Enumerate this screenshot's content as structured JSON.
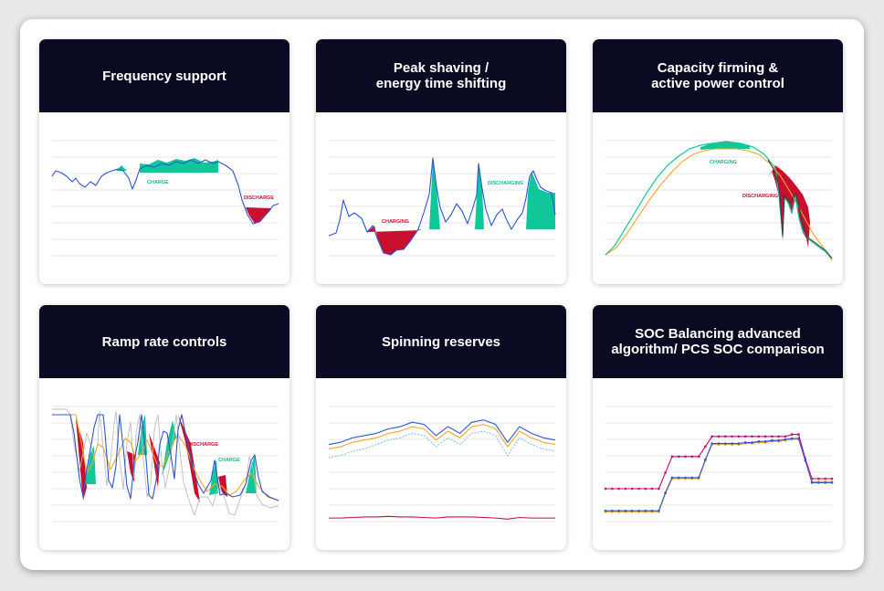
{
  "colors": {
    "header_bg": "#0a0b22",
    "blue": "#2a56d6",
    "green": "#0fc79a",
    "red": "#c8102e",
    "orange": "#f5a623",
    "magenta": "#d1007c",
    "gray": "#b5b5b5",
    "light_blue": "#6fb4ee",
    "grid": "#e3e3e3"
  },
  "cards": [
    {
      "title": "Frequency support",
      "chart_data": {
        "type": "line",
        "annotations": [
          "CHARGE",
          "DISCHARGE"
        ],
        "series": [
          {
            "values": [
              0.62,
              0.66,
              0.64,
              0.58,
              0.6,
              0.55,
              0.57,
              0.52,
              0.58,
              0.56,
              0.62,
              0.64,
              0.7,
              0.66,
              0.5,
              0.6,
              0.7,
              0.74,
              0.72,
              0.76,
              0.74,
              0.78,
              0.76,
              0.8,
              0.75,
              0.78,
              0.74,
              0.72,
              0.6,
              0.48,
              0.38,
              0.3,
              0.26,
              0.32,
              0.36,
              0.4
            ]
          }
        ]
      }
    },
    {
      "title": "Peak shaving /\nenergy time shifting",
      "chart_data": {
        "type": "line",
        "annotations": [
          "CHARGING",
          "DISCHARGING"
        ],
        "series": [
          {
            "values": [
              0.3,
              0.35,
              0.5,
              0.45,
              0.38,
              0.3,
              0.15,
              0.1,
              0.12,
              0.14,
              0.2,
              0.32,
              0.28,
              0.55,
              0.82,
              0.5,
              0.42,
              0.5,
              0.8,
              0.46,
              0.32,
              0.38,
              0.42,
              0.35,
              0.5,
              0.7,
              0.75,
              0.62,
              0.5,
              0.35
            ]
          }
        ]
      }
    },
    {
      "title": "Capacity firming &\nactive power control",
      "chart_data": {
        "type": "line",
        "annotations": [
          "CHARGING",
          "DISCHARGING"
        ],
        "series": [
          {
            "values": [
              0.03,
              0.2,
              0.4,
              0.58,
              0.74,
              0.86,
              0.93,
              0.96,
              0.92,
              0.8,
              0.6,
              0.4,
              0.2,
              0.05
            ]
          }
        ]
      }
    },
    {
      "title": "Ramp rate controls",
      "chart_data": {
        "type": "line",
        "annotations": [
          "DISCHARGE",
          "CHARGE"
        ],
        "series": [
          {
            "values": [
              0.9,
              0.9,
              0.4,
              0.1,
              0.9,
              0.2,
              0.9,
              0.5,
              0.8,
              0.3,
              0.85,
              0.2,
              0.8,
              0.6,
              0.5,
              0.4,
              0.55,
              0.3,
              0.5,
              0.3,
              0.2,
              0.18
            ]
          }
        ]
      }
    },
    {
      "title": "Spinning reserves",
      "chart_data": {
        "type": "line",
        "series": [
          {
            "values": [
              0.7,
              0.72,
              0.76,
              0.78,
              0.8,
              0.84,
              0.86,
              0.9,
              0.88,
              0.78,
              0.86,
              0.8,
              0.9,
              0.92,
              0.88,
              0.72,
              0.86,
              0.8,
              0.76,
              0.74
            ]
          },
          {
            "values": [
              0.66,
              0.68,
              0.72,
              0.74,
              0.76,
              0.8,
              0.82,
              0.86,
              0.84,
              0.74,
              0.82,
              0.76,
              0.86,
              0.88,
              0.84,
              0.68,
              0.82,
              0.76,
              0.72,
              0.7
            ]
          },
          {
            "values": [
              0.58,
              0.6,
              0.64,
              0.66,
              0.7,
              0.74,
              0.76,
              0.8,
              0.78,
              0.68,
              0.76,
              0.7,
              0.8,
              0.82,
              0.78,
              0.6,
              0.76,
              0.7,
              0.66,
              0.64
            ]
          },
          {
            "values": [
              0.04,
              0.04,
              0.045,
              0.05,
              0.05,
              0.055,
              0.05,
              0.05,
              0.045,
              0.04,
              0.05,
              0.05,
              0.05,
              0.045,
              0.04,
              0.03,
              0.045,
              0.04,
              0.04,
              0.04
            ]
          }
        ]
      }
    },
    {
      "title": "SOC Balancing advanced\nalgorithm/  PCS SOC comparison",
      "chart_data": {
        "type": "line",
        "series": [
          {
            "values": [
              0.3,
              0.3,
              0.3,
              0.3,
              0.3,
              0.3,
              0.3,
              0.3,
              0.3,
              0.46,
              0.62,
              0.62,
              0.62,
              0.62,
              0.62,
              0.72,
              0.82,
              0.82,
              0.82,
              0.82,
              0.82,
              0.82,
              0.82,
              0.82,
              0.82,
              0.82,
              0.82,
              0.82,
              0.84,
              0.84,
              0.6,
              0.4,
              0.4,
              0.4,
              0.4
            ]
          },
          {
            "values": [
              0.07,
              0.07,
              0.07,
              0.07,
              0.07,
              0.07,
              0.07,
              0.07,
              0.07,
              0.25,
              0.4,
              0.4,
              0.4,
              0.4,
              0.4,
              0.58,
              0.74,
              0.74,
              0.74,
              0.74,
              0.74,
              0.75,
              0.75,
              0.76,
              0.76,
              0.77,
              0.77,
              0.78,
              0.79,
              0.79,
              0.58,
              0.37,
              0.37,
              0.37,
              0.37
            ]
          },
          {
            "values": [
              0.08,
              0.08,
              0.08,
              0.08,
              0.08,
              0.08,
              0.08,
              0.08,
              0.08,
              0.26,
              0.41,
              0.41,
              0.41,
              0.41,
              0.41,
              0.59,
              0.75,
              0.75,
              0.75,
              0.75,
              0.75,
              0.76,
              0.76,
              0.77,
              0.77,
              0.78,
              0.78,
              0.79,
              0.8,
              0.8,
              0.58,
              0.36,
              0.36,
              0.36,
              0.36
            ]
          }
        ]
      }
    }
  ]
}
